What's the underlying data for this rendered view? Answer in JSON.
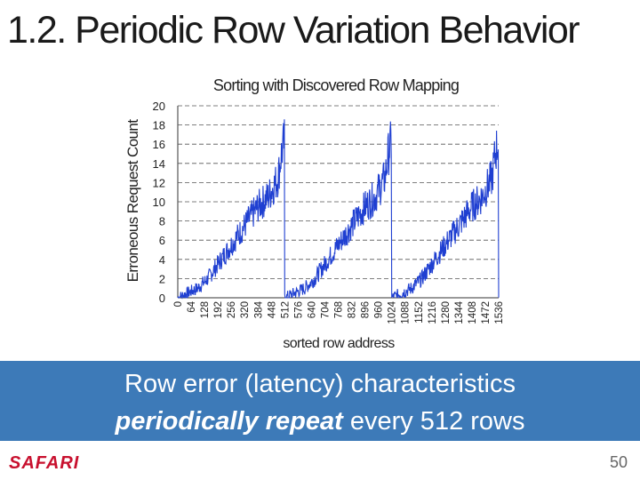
{
  "slide": {
    "title": "1.2. Periodic Row Variation Behavior",
    "banner_line1": "Row error (latency) characteristics",
    "banner_emph": "periodically repeat",
    "banner_rest": " every 512 rows",
    "logo": "SAFARI",
    "page_number": "50"
  },
  "colors": {
    "banner": "#3d7ab8",
    "series": "#1f3fd1",
    "logo": "#c8102e"
  },
  "chart_data": {
    "type": "line",
    "title": "Sorting with Discovered Row Mapping",
    "xlabel": "sorted row address",
    "ylabel": "Erroneous Request Count",
    "x_ticks": [
      "0",
      "64",
      "128",
      "192",
      "256",
      "320",
      "384",
      "448",
      "512",
      "576",
      "640",
      "704",
      "768",
      "832",
      "896",
      "960",
      "1024",
      "1088",
      "1152",
      "1216",
      "1280",
      "1344",
      "1408",
      "1472",
      "1536"
    ],
    "y_ticks": [
      "0",
      "2",
      "4",
      "6",
      "8",
      "10",
      "12",
      "14",
      "16",
      "18",
      "20"
    ],
    "xlim": [
      0,
      1536
    ],
    "ylim": [
      0,
      20
    ],
    "grid": true,
    "period": 512,
    "series": [
      {
        "x": [
          0,
          48,
          96,
          144,
          192,
          240,
          288,
          336,
          384,
          432,
          480,
          496,
          512
        ],
        "y": [
          0,
          0.5,
          1,
          2,
          3.5,
          5,
          6.5,
          8,
          9.5,
          10.5,
          12.5,
          15,
          16.5
        ]
      }
    ]
  }
}
